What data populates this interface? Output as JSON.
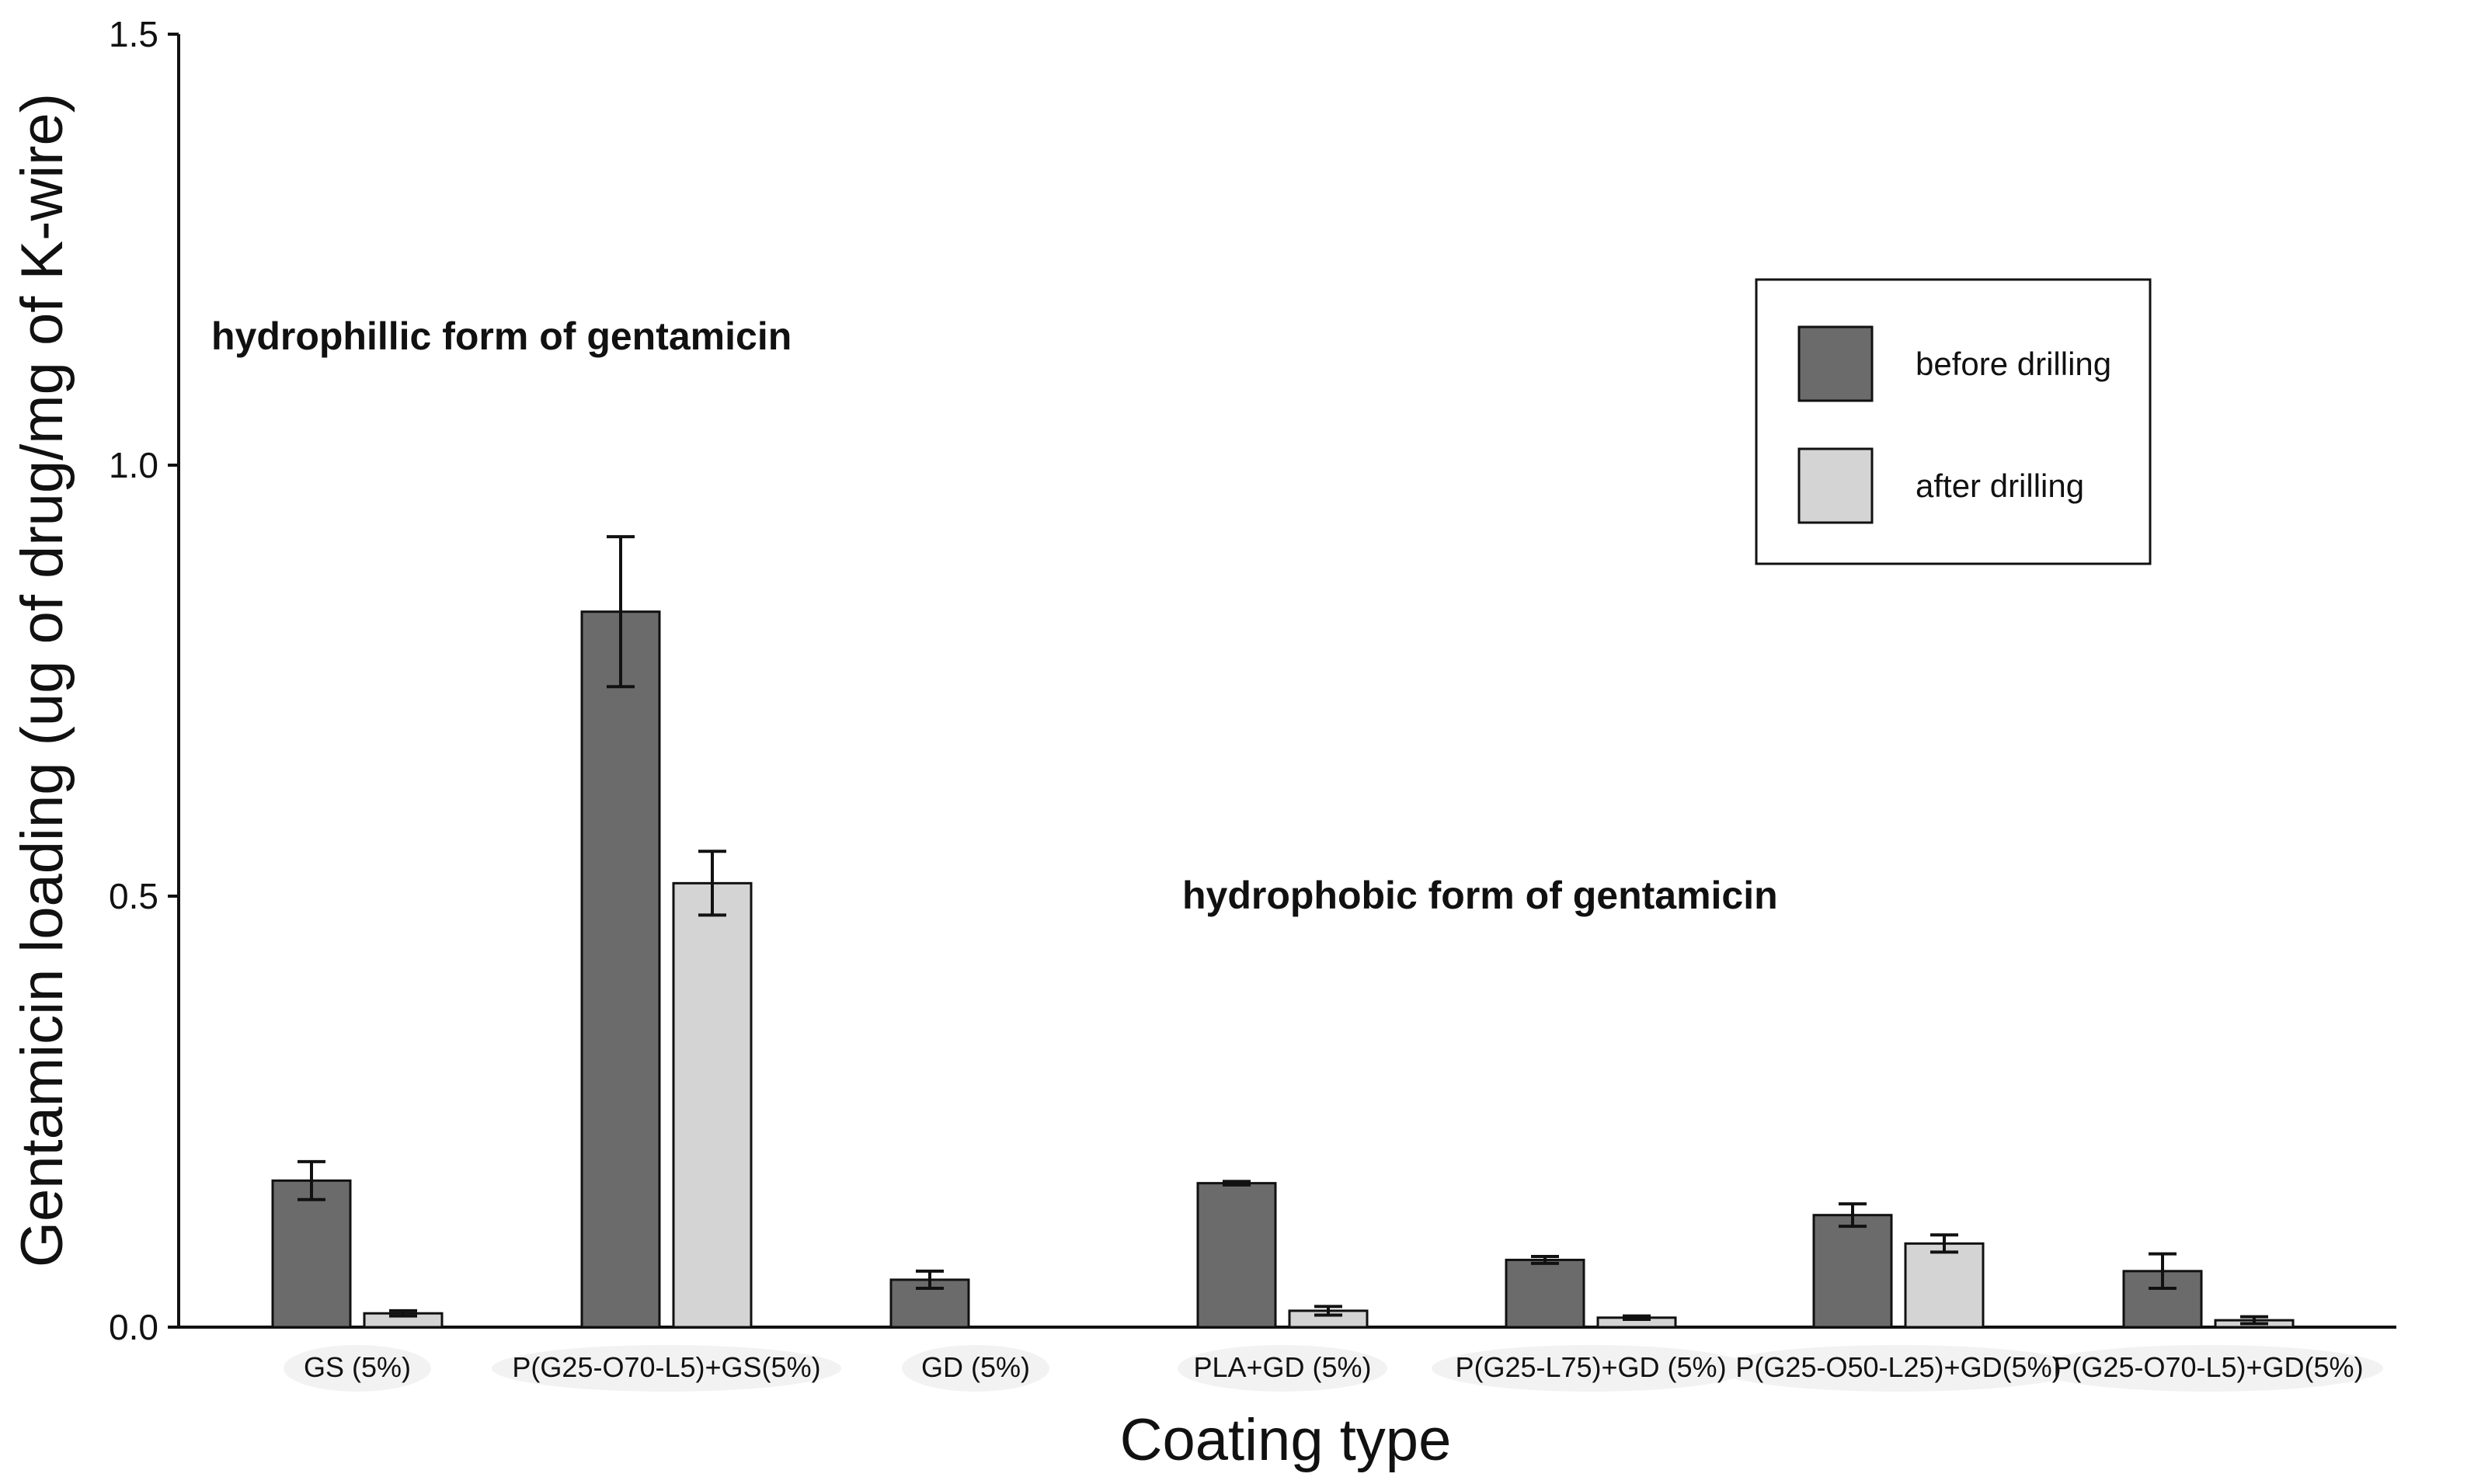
{
  "chart_data": {
    "type": "bar",
    "title": "",
    "xlabel": "Coating type",
    "ylabel": "Gentamicin loading (ug of drug/mg of K-wire)",
    "ylim": [
      0,
      1.5
    ],
    "yticks": [
      "0.0",
      "0.5",
      "1.0",
      "1.5"
    ],
    "grid": false,
    "legend_position": "top-right",
    "categories": [
      "GS (5%)",
      "P(G25-O70-L5)+GS(5%)",
      "GD (5%)",
      "PLA+GD (5%)",
      "P(G25-L75)+GD (5%)",
      "P(G25-O50-L25)+GD(5%)",
      "P(G25-O70-L5)+GD(5%)"
    ],
    "series": [
      {
        "name": "before drilling",
        "color": "#6b6b6b",
        "values": [
          0.17,
          0.83,
          0.055,
          0.167,
          0.078,
          0.13,
          0.065
        ],
        "errors": [
          0.022,
          0.087,
          0.01,
          0.002,
          0.004,
          0.013,
          0.02
        ]
      },
      {
        "name": "after drilling",
        "color": "#d4d4d4",
        "values": [
          0.016,
          0.515,
          0.0,
          0.019,
          0.011,
          0.097,
          0.008
        ],
        "errors": [
          0.003,
          0.037,
          0.0,
          0.005,
          0.002,
          0.01,
          0.004
        ]
      }
    ],
    "annotations": [
      {
        "text": "hydrophillic form of gentamicin"
      },
      {
        "text": "hydrophobic form of gentamicin"
      }
    ]
  }
}
